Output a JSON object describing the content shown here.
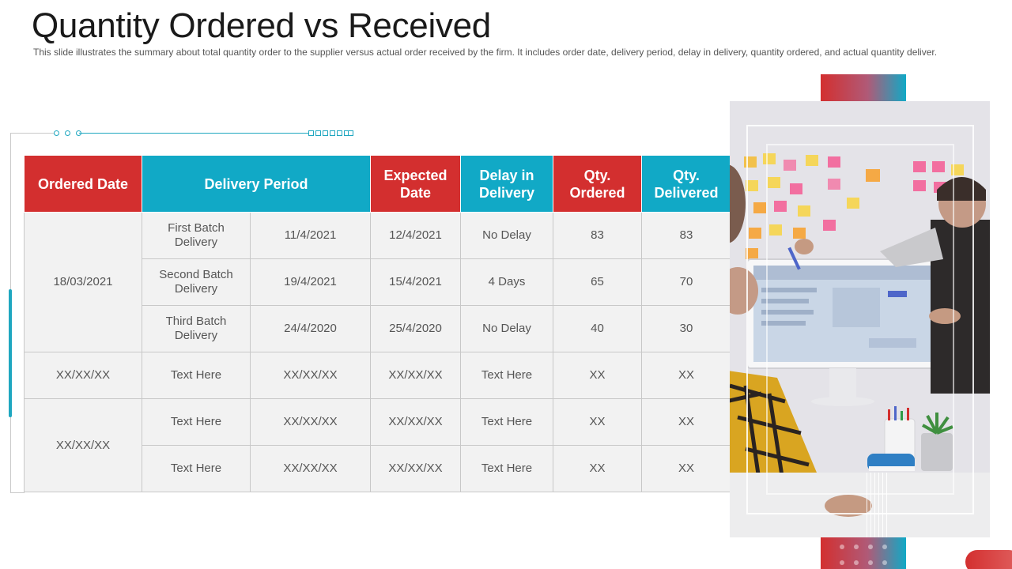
{
  "title": "Quantity Ordered vs Received",
  "subtitle": "This slide illustrates the summary about total quantity order to the supplier versus actual order received by the firm. It includes order date, delivery period, delay in delivery, quantity ordered, and actual quantity deliver.",
  "colors": {
    "red": "#d32f2f",
    "teal": "#11a9c6",
    "cell_bg": "#f2f2f2"
  },
  "table": {
    "headers": {
      "ordered_date": "Ordered Date",
      "delivery_period": "Delivery Period",
      "expected_date": "Expected Date",
      "delay": "Delay in Delivery",
      "qty_ordered": "Qty. Ordered",
      "qty_delivered": "Qty. Delivered"
    },
    "groups": [
      {
        "ordered_date": "18/03/2021"
      },
      {
        "ordered_date": "XX/XX/XX"
      },
      {
        "ordered_date": "XX/XX/XX"
      }
    ],
    "rows": [
      {
        "batch": "First Batch Delivery",
        "delivery_date": "11/4/2021",
        "expected": "12/4/2021",
        "delay": "No Delay",
        "ordered": "83",
        "delivered": "83"
      },
      {
        "batch": "Second Batch Delivery",
        "delivery_date": "19/4/2021",
        "expected": "15/4/2021",
        "delay": "4 Days",
        "ordered": "65",
        "delivered": "70"
      },
      {
        "batch": "Third Batch Delivery",
        "delivery_date": "24/4/2020",
        "expected": "25/4/2020",
        "delay": "No Delay",
        "ordered": "40",
        "delivered": "30"
      },
      {
        "batch": "Text Here",
        "delivery_date": "XX/XX/XX",
        "expected": "XX/XX/XX",
        "delay": "Text Here",
        "ordered": "XX",
        "delivered": "XX"
      },
      {
        "batch": "Text Here",
        "delivery_date": "XX/XX/XX",
        "expected": "XX/XX/XX",
        "delay": "Text Here",
        "ordered": "XX",
        "delivered": "XX"
      },
      {
        "batch": "Text Here",
        "delivery_date": "XX/XX/XX",
        "expected": "XX/XX/XX",
        "delay": "Text Here",
        "ordered": "XX",
        "delivered": "XX"
      }
    ]
  },
  "image": {
    "icon": "office-team-photo"
  }
}
